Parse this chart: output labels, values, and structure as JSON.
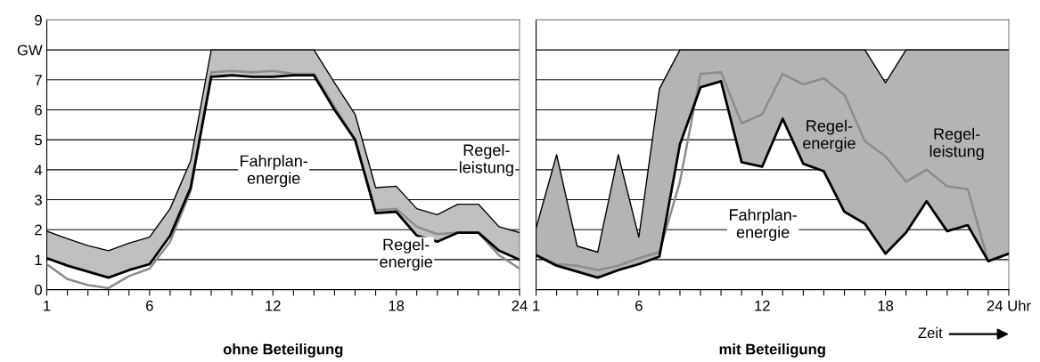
{
  "chart_data": [
    {
      "type": "line",
      "title": "ohne Beteiligung",
      "xlim": [
        1,
        24
      ],
      "ylim": [
        0,
        9
      ],
      "x": [
        1,
        2,
        3,
        4,
        5,
        6,
        7,
        8,
        9,
        10,
        11,
        12,
        13,
        14,
        15,
        16,
        17,
        18,
        19,
        20,
        21,
        22,
        23,
        24
      ],
      "xticks": [
        1,
        {
          "value": 2,
          "label": null
        },
        {
          "value": 3,
          "label": null
        },
        {
          "value": 4,
          "label": null
        },
        {
          "value": 5,
          "label": null
        },
        6,
        {
          "value": 7,
          "label": null
        },
        {
          "value": 8,
          "label": null
        },
        {
          "value": 9,
          "label": null
        },
        {
          "value": 10,
          "label": null
        },
        {
          "value": 11,
          "label": null
        },
        12,
        {
          "value": 13,
          "label": null
        },
        {
          "value": 14,
          "label": null
        },
        {
          "value": 15,
          "label": null
        },
        {
          "value": 16,
          "label": null
        },
        {
          "value": 17,
          "label": null
        },
        18,
        {
          "value": 19,
          "label": null
        },
        {
          "value": 20,
          "label": null
        },
        {
          "value": 21,
          "label": null
        },
        {
          "value": 22,
          "label": null
        },
        {
          "value": 23,
          "label": null
        },
        24
      ],
      "yticks": [
        0,
        1,
        2,
        3,
        4,
        5,
        6,
        7,
        {
          "value": 8,
          "label": "GW"
        },
        9
      ],
      "grid": "y",
      "series": [
        {
          "color": "#000000",
          "values": [
            1.95,
            1.7,
            1.47,
            1.3,
            1.55,
            1.75,
            2.7,
            4.3,
            8,
            8,
            8,
            8,
            8,
            8,
            6.9,
            5.85,
            3.4,
            3.45,
            2.7,
            2.5,
            2.85,
            2.85,
            2.1,
            1.9
          ]
        },
        {
          "color": "#8c8c8c",
          "values": [
            0.85,
            0.35,
            0.15,
            0.05,
            0.45,
            0.7,
            1.6,
            3.3,
            7.25,
            7.3,
            7.25,
            7.3,
            7.2,
            7.2,
            6.1,
            5.0,
            2.65,
            2.7,
            2.1,
            1.85,
            1.9,
            1.9,
            1.15,
            0.7
          ]
        },
        {
          "color": "#000000",
          "values": [
            1.05,
            0.8,
            0.6,
            0.4,
            0.65,
            0.85,
            1.8,
            3.4,
            7.1,
            7.15,
            7.1,
            7.1,
            7.15,
            7.15,
            6.0,
            5.0,
            2.55,
            2.6,
            1.8,
            1.6,
            1.9,
            1.9,
            1.3,
            1.0
          ],
          "lower": [
            1.05,
            0.8,
            0.6,
            0.4,
            0.65,
            0.85,
            1.8,
            3.4,
            7.1,
            7.15,
            7.1,
            7.1,
            7.15,
            7.15,
            6.0,
            5.0,
            2.55,
            2.6,
            1.8,
            1.6,
            1.9,
            1.9,
            1.3,
            1.0
          ],
          "upper": [
            1.95,
            1.7,
            1.47,
            1.3,
            1.55,
            1.75,
            2.7,
            4.3,
            8,
            8,
            8,
            8,
            8,
            8,
            6.9,
            5.85,
            3.4,
            3.45,
            2.7,
            2.5,
            2.85,
            2.85,
            2.1,
            1.9
          ]
        }
      ],
      "annotations": [
        "Fahrplan-\nenergie",
        "Regel-\nenergie",
        "Regel-\nleistung"
      ]
    },
    {
      "type": "line",
      "title": "mit Beteiligung",
      "xlim": [
        1,
        24
      ],
      "ylim": [
        0,
        9
      ],
      "x": [
        1,
        2,
        3,
        4,
        5,
        6,
        7,
        8,
        9,
        10,
        11,
        12,
        13,
        14,
        15,
        16,
        17,
        18,
        19,
        20,
        21,
        22,
        23,
        24
      ],
      "xticks": [
        1,
        {
          "value": 2,
          "label": null
        },
        {
          "value": 3,
          "label": null
        },
        {
          "value": 4,
          "label": null
        },
        {
          "value": 5,
          "label": null
        },
        6,
        {
          "value": 7,
          "label": null
        },
        {
          "value": 8,
          "label": null
        },
        {
          "value": 9,
          "label": null
        },
        {
          "value": 10,
          "label": null
        },
        {
          "value": 11,
          "label": null
        },
        12,
        {
          "value": 13,
          "label": null
        },
        {
          "value": 14,
          "label": null
        },
        {
          "value": 15,
          "label": null
        },
        {
          "value": 16,
          "label": null
        },
        {
          "value": 17,
          "label": null
        },
        18,
        {
          "value": 19,
          "label": null
        },
        {
          "value": 20,
          "label": null
        },
        {
          "value": 21,
          "label": null
        },
        {
          "value": 22,
          "label": null
        },
        {
          "value": 23,
          "label": null
        },
        {
          "value": 24,
          "label": "24 Uhr"
        }
      ],
      "yticks": [
        0,
        1,
        2,
        3,
        4,
        5,
        6,
        7,
        8,
        9
      ],
      "grid": "y",
      "tick_labels": "x",
      "series": [
        {
          "color": "#000000",
          "values": [
            2.05,
            4.5,
            1.45,
            1.25,
            4.5,
            1.75,
            6.7,
            8,
            8,
            8,
            8,
            8,
            8,
            8,
            8,
            8,
            8,
            6.9,
            8,
            8,
            8,
            8,
            8,
            8
          ]
        },
        {
          "color": "#8c8c8c",
          "values": [
            1.15,
            0.85,
            0.8,
            0.65,
            0.8,
            1.05,
            1.25,
            3.6,
            7.2,
            7.25,
            5.55,
            5.85,
            7.2,
            6.85,
            7.05,
            6.5,
            4.95,
            4.45,
            3.6,
            4.0,
            3.45,
            3.35,
            0.95,
            1.2
          ]
        },
        {
          "color": "#000000",
          "values": [
            1.15,
            0.8,
            0.6,
            0.4,
            0.65,
            0.85,
            1.1,
            4.85,
            6.75,
            6.95,
            4.25,
            4.1,
            5.7,
            4.2,
            3.95,
            2.6,
            2.2,
            1.2,
            1.9,
            2.95,
            1.95,
            2.15,
            0.95,
            1.2
          ],
          "lower": [
            1.15,
            0.8,
            0.6,
            0.4,
            0.65,
            0.85,
            1.1,
            4.85,
            6.75,
            6.95,
            4.25,
            4.1,
            5.7,
            4.2,
            3.95,
            2.6,
            2.2,
            1.2,
            1.9,
            2.95,
            1.95,
            2.15,
            0.95,
            1.2
          ],
          "upper": [
            2.05,
            4.5,
            1.45,
            1.25,
            4.5,
            1.75,
            6.7,
            8,
            8,
            8,
            8,
            8,
            8,
            8,
            8,
            8,
            8,
            6.9,
            8,
            8,
            8,
            8,
            8,
            8
          ]
        }
      ],
      "annotations": [
        "Fahrplan-\nenergie",
        "Regel-\nenergie",
        "Regel-\nleistung",
        "Zeit"
      ]
    }
  ]
}
